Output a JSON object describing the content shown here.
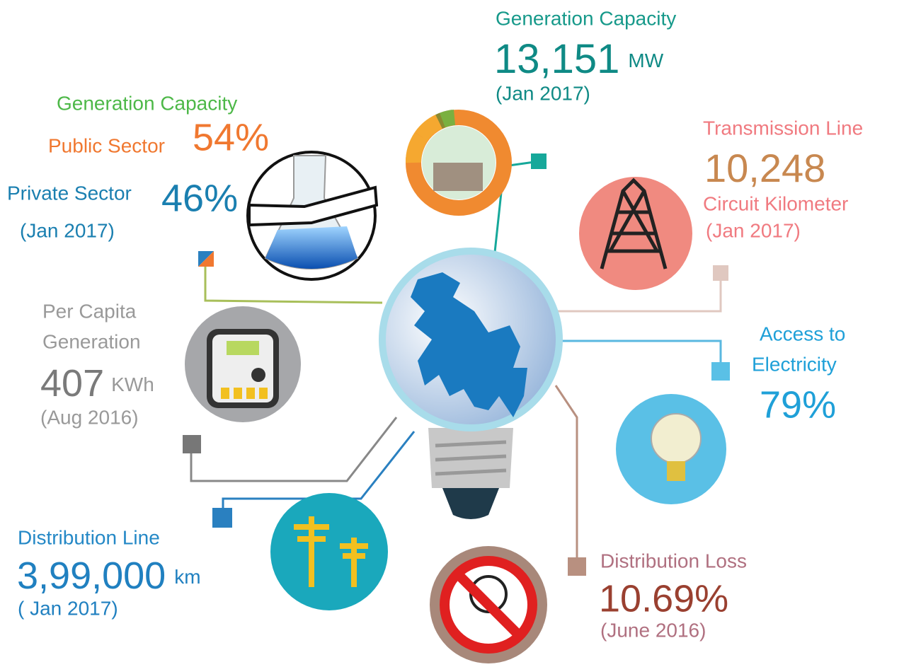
{
  "generation_capacity": {
    "label": "Generation Capacity",
    "value": "13,151",
    "unit": "MW",
    "date": "(Jan 2017)"
  },
  "sector_share": {
    "label": "Generation Capacity",
    "public_label": "Public Sector",
    "public_value": "54%",
    "private_label": "Private Sector",
    "private_value": "46%",
    "date": "(Jan 2017)"
  },
  "transmission_line": {
    "label": "Transmission Line",
    "value": "10,248",
    "unit": "Circuit Kilometer",
    "date": "(Jan 2017)"
  },
  "per_capita_generation": {
    "label_line1": "Per Capita",
    "label_line2": "Generation",
    "value": "407",
    "unit": "KWh",
    "date": "(Aug 2016)"
  },
  "access_to_electricity": {
    "label_line1": "Access to",
    "label_line2": "Electricity",
    "value": "79%"
  },
  "distribution_line": {
    "label": "Distribution Line",
    "value": "3,99,000",
    "unit": "km",
    "date": "( Jan 2017)"
  },
  "distribution_loss": {
    "label": "Distribution Loss",
    "value": "10.69%",
    "date": "(June 2016)"
  }
}
